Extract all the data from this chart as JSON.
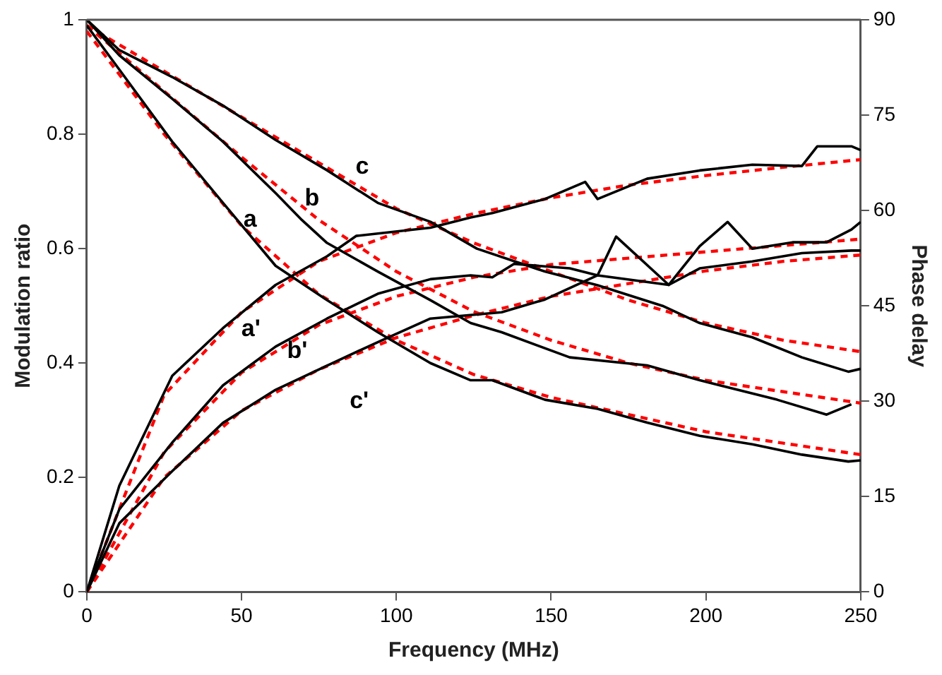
{
  "chart_data": {
    "type": "line",
    "xlabel": "Frequency (MHz)",
    "ylabel": "Modulation ratio",
    "y2label": "Phase delay",
    "xlim": [
      0,
      250
    ],
    "xticks": [
      0,
      50,
      100,
      150,
      200,
      250
    ],
    "ylim": [
      0,
      1
    ],
    "yticks": [
      0,
      0.2,
      0.4,
      0.6,
      0.8,
      1
    ],
    "y2lim": [
      0,
      90
    ],
    "y2ticks": [
      0,
      15,
      30,
      45,
      60,
      75,
      90
    ],
    "grid": false,
    "legend": false,
    "marker": "none",
    "series": [
      {
        "name": "c",
        "color": "#000000",
        "line_style": "solid",
        "x": [
          0,
          10.5,
          27.6,
          44,
          61,
          77.6,
          94,
          111,
          126,
          148,
          165,
          186,
          198,
          215,
          231,
          246,
          250
        ],
        "values": [
          1,
          0.947,
          0.9,
          0.85,
          0.79,
          0.737,
          0.68,
          0.647,
          0.6,
          0.56,
          0.536,
          0.5,
          0.47,
          0.445,
          0.41,
          0.385,
          0.39
        ]
      },
      {
        "name": "b",
        "color": "#000000",
        "line_style": "solid",
        "x": [
          0,
          10.5,
          27.6,
          44,
          61,
          69.5,
          77.6,
          94,
          111,
          124,
          134,
          156,
          181,
          198,
          223,
          239,
          247
        ],
        "values": [
          1,
          0.938,
          0.862,
          0.787,
          0.697,
          0.65,
          0.61,
          0.56,
          0.51,
          0.47,
          0.454,
          0.41,
          0.396,
          0.37,
          0.336,
          0.31,
          0.328
        ]
      },
      {
        "name": "a",
        "color": "#000000",
        "line_style": "solid",
        "x": [
          0,
          10.5,
          27.6,
          44,
          61,
          77.6,
          94,
          111,
          124,
          131,
          148,
          165,
          181,
          198,
          215,
          231,
          246,
          250
        ],
        "values": [
          0.99,
          0.913,
          0.787,
          0.68,
          0.57,
          0.51,
          0.454,
          0.4,
          0.37,
          0.37,
          0.336,
          0.32,
          0.296,
          0.273,
          0.258,
          0.24,
          0.228,
          0.23
        ]
      },
      {
        "name": "a'",
        "color": "#000000",
        "line_style": "solid",
        "axis": "y2",
        "x": [
          0,
          10.5,
          27.6,
          44,
          61,
          77.6,
          87,
          111,
          124,
          131,
          148,
          161,
          165,
          181,
          198,
          215,
          231,
          236,
          247,
          250
        ],
        "values": [
          0,
          16.7,
          34,
          41.5,
          48.3,
          52.8,
          56,
          57.3,
          58.9,
          59.6,
          61.8,
          64.5,
          61.8,
          65,
          66.3,
          67.2,
          67,
          70.1,
          70.1,
          69.5
        ]
      },
      {
        "name": "b'",
        "color": "#000000",
        "line_style": "solid",
        "axis": "y2",
        "x": [
          0,
          10.5,
          27.6,
          44,
          61,
          77.6,
          94,
          111,
          124,
          131,
          138,
          156,
          165,
          171,
          188,
          198,
          207,
          215,
          228,
          239,
          247,
          250
        ],
        "values": [
          0,
          13,
          23.5,
          32.5,
          38.6,
          43,
          46.9,
          49.2,
          49.8,
          49.5,
          51.6,
          50.9,
          49.8,
          55.9,
          48.3,
          54.4,
          58.2,
          54,
          55,
          55,
          57,
          58.2
        ]
      },
      {
        "name": "c'",
        "color": "#000000",
        "line_style": "solid",
        "axis": "y2",
        "x": [
          0,
          10.5,
          27.6,
          44,
          61,
          77.6,
          94,
          111,
          134,
          148,
          165,
          188,
          198,
          215,
          231,
          247,
          250
        ],
        "values": [
          0,
          10.8,
          19,
          26.6,
          31.8,
          35.6,
          39.3,
          43,
          44,
          46,
          49.8,
          48.3,
          50.9,
          52,
          53.3,
          53.7,
          53.7
        ]
      },
      {
        "color": "#ff0000",
        "line_style": "dashed",
        "x": [
          0,
          25,
          50,
          75,
          100,
          125,
          150,
          175,
          200,
          225,
          250
        ],
        "values": [
          0.99,
          0.91,
          0.83,
          0.75,
          0.67,
          0.61,
          0.56,
          0.51,
          0.47,
          0.44,
          0.42
        ]
      },
      {
        "color": "#ff0000",
        "line_style": "dashed",
        "x": [
          0,
          25,
          50,
          75,
          100,
          125,
          150,
          175,
          200,
          225,
          250
        ],
        "values": [
          0.99,
          0.875,
          0.76,
          0.65,
          0.56,
          0.49,
          0.44,
          0.4,
          0.37,
          0.35,
          0.33
        ]
      },
      {
        "color": "#ff0000",
        "line_style": "dashed",
        "x": [
          0,
          25,
          50,
          75,
          100,
          125,
          150,
          175,
          200,
          225,
          250
        ],
        "values": [
          0.98,
          0.8,
          0.64,
          0.52,
          0.44,
          0.38,
          0.34,
          0.31,
          0.28,
          0.26,
          0.24
        ]
      },
      {
        "color": "#ff0000",
        "line_style": "dashed",
        "axis": "y2",
        "x": [
          0,
          25,
          50,
          75,
          100,
          125,
          150,
          175,
          200,
          225,
          250
        ],
        "values": [
          0,
          31,
          44,
          52,
          56.5,
          59.5,
          62,
          64,
          65.5,
          66.8,
          68
        ]
      },
      {
        "color": "#ff0000",
        "line_style": "dashed",
        "axis": "y2",
        "x": [
          0,
          25,
          50,
          75,
          100,
          125,
          150,
          175,
          200,
          225,
          250
        ],
        "values": [
          0,
          22,
          34.5,
          42,
          46.5,
          49.5,
          51.5,
          52.5,
          53.5,
          54.5,
          55.5
        ]
      },
      {
        "color": "#ff0000",
        "line_style": "dashed",
        "axis": "y2",
        "x": [
          0,
          25,
          50,
          75,
          100,
          125,
          150,
          175,
          200,
          225,
          250
        ],
        "values": [
          0,
          18,
          28.5,
          35,
          40,
          43.5,
          46.5,
          48.5,
          50.5,
          52,
          53
        ]
      }
    ]
  }
}
